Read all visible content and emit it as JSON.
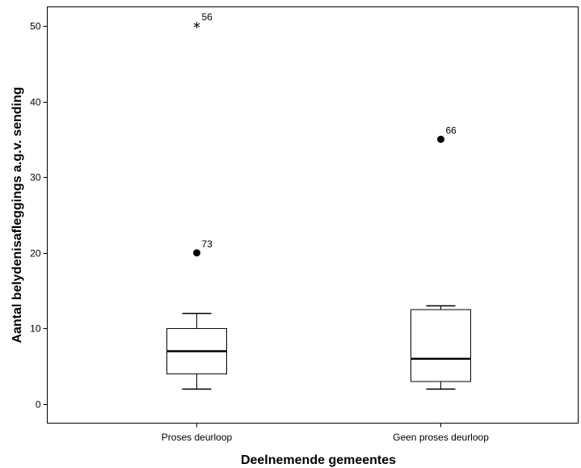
{
  "chart_data": {
    "type": "boxplot",
    "title": "",
    "xlabel": "Deelnemende gemeentes",
    "ylabel": "Aantal belydenisafleggings a.g.v. sending",
    "ylim": [
      -2.5,
      52.5
    ],
    "yticks": [
      0,
      10,
      20,
      30,
      40,
      50
    ],
    "grid": false,
    "legend": "none",
    "categories": [
      "Proses deurloop",
      "Geen proses deurloop"
    ],
    "boxes": [
      {
        "category": "Proses deurloop",
        "whisker_low": 2,
        "q1": 4,
        "median": 7,
        "q3": 10,
        "whisker_high": 12,
        "outliers": [
          {
            "value": 20,
            "label": "73",
            "marker": "circle"
          },
          {
            "value": 50,
            "label": "56",
            "marker": "star"
          }
        ]
      },
      {
        "category": "Geen proses deurloop",
        "whisker_low": 2,
        "q1": 3,
        "median": 6,
        "q3": 12.5,
        "whisker_high": 13,
        "outliers": [
          {
            "value": 35,
            "label": "66",
            "marker": "circle"
          }
        ]
      }
    ]
  }
}
